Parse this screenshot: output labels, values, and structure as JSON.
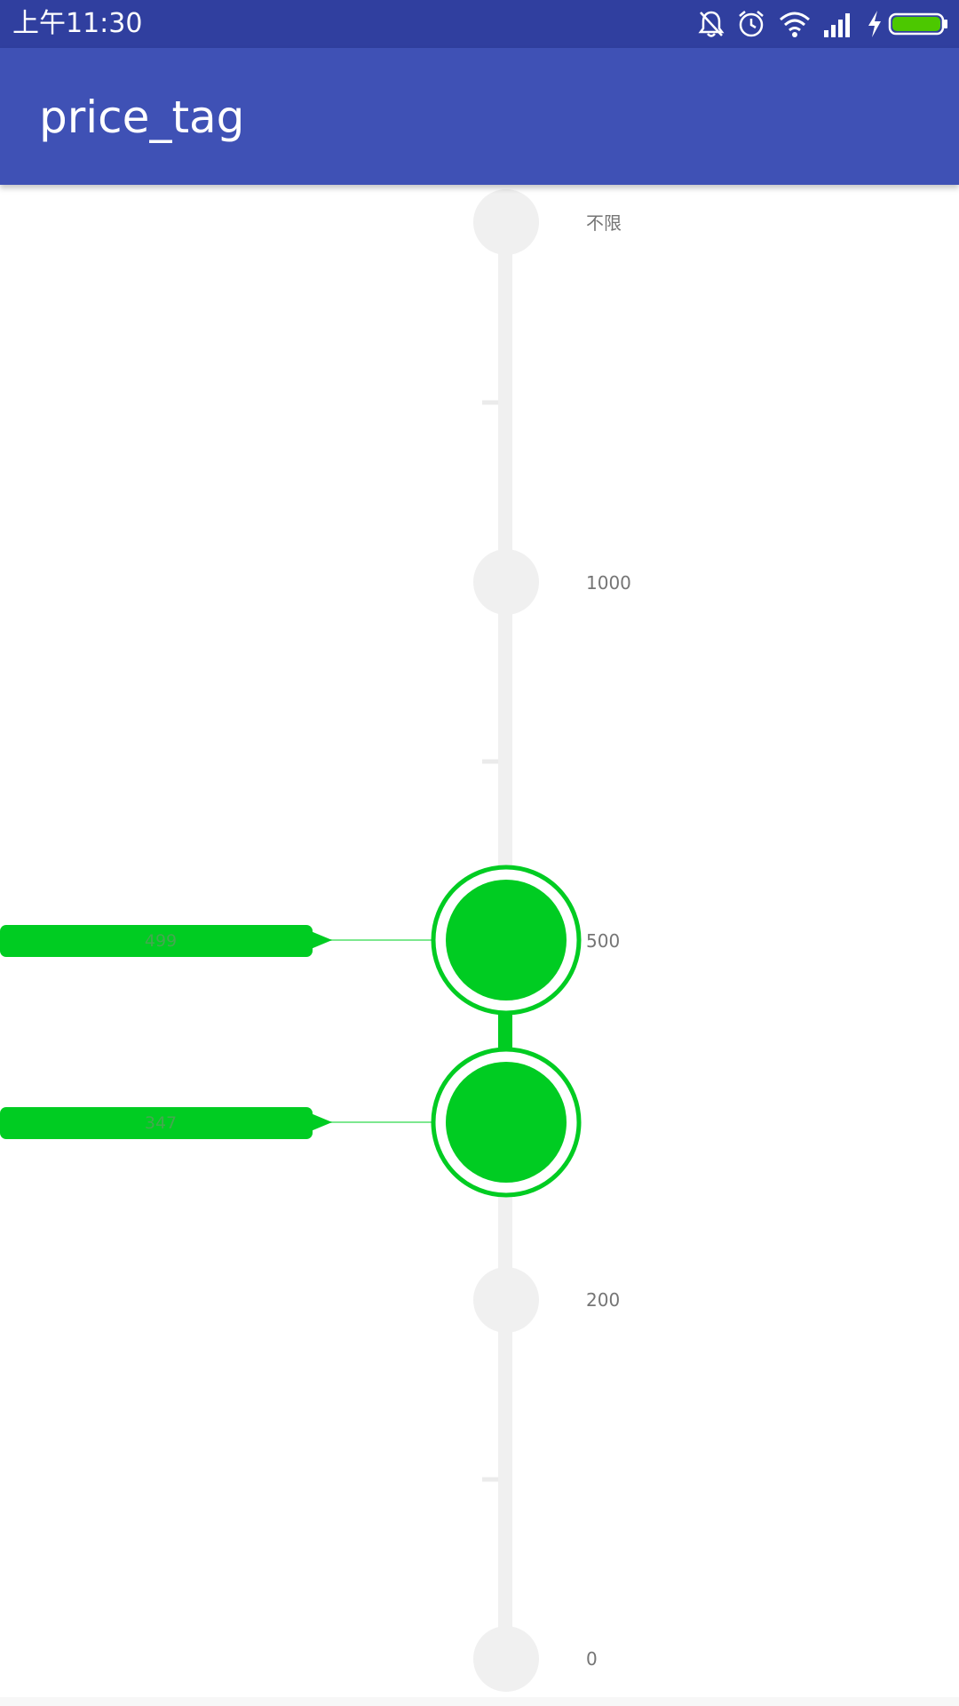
{
  "status_bar": {
    "time": "上午11:30",
    "icons": [
      "bell-off-icon",
      "alarm-icon",
      "wifi-icon",
      "signal-icon",
      "charging-icon",
      "battery-icon"
    ],
    "color": "#303F9F"
  },
  "app_bar": {
    "title": "price_tag",
    "color": "#3F51B5"
  },
  "slider": {
    "track_color": "#F0F0F0",
    "active_color": "#00CC22",
    "labels": [
      {
        "text": "不限"
      },
      {
        "text": "1000"
      },
      {
        "text": "500"
      },
      {
        "text": "200"
      },
      {
        "text": "0"
      }
    ],
    "thumbs": [
      {
        "name": "upper",
        "value": "499"
      },
      {
        "name": "lower",
        "value": "347"
      }
    ]
  }
}
